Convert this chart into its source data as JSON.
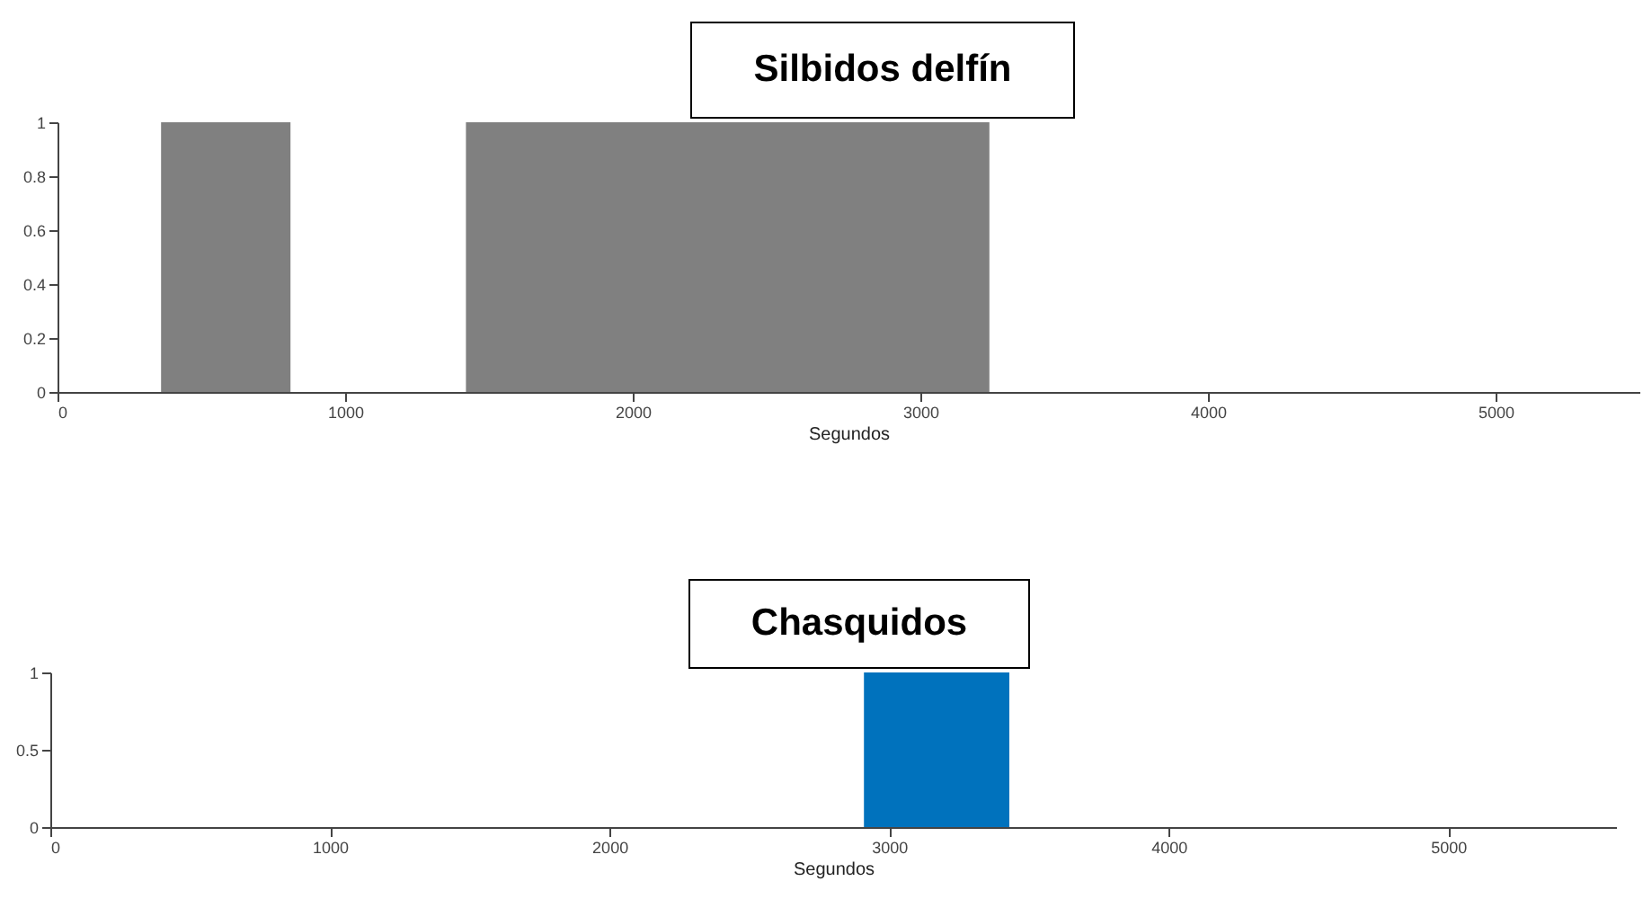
{
  "chart_data": [
    {
      "type": "histogram",
      "title": "Silbidos delfín",
      "xlabel": "Segundos",
      "bins": [
        360,
        810,
        1420,
        3240
      ],
      "series": [
        {
          "color": "#808080",
          "values": [
            1,
            0,
            1
          ]
        }
      ],
      "xlim": [
        0,
        5500
      ],
      "xticks": [
        0,
        1000,
        2000,
        3000,
        4000,
        5000
      ],
      "ylim": [
        0,
        1
      ],
      "yticks": [
        0,
        0.2,
        0.4,
        0.6,
        0.8,
        1
      ]
    },
    {
      "type": "histogram",
      "title": "Chasquidos",
      "xlabel": "Segundos",
      "bins": [
        2910,
        3430
      ],
      "series": [
        {
          "color": "#0072bd",
          "values": [
            1
          ]
        }
      ],
      "xlim": [
        0,
        5600
      ],
      "xticks": [
        0,
        1000,
        2000,
        3000,
        4000,
        5000
      ],
      "ylim": [
        0,
        1
      ],
      "yticks": [
        0,
        0.5,
        1
      ]
    }
  ]
}
